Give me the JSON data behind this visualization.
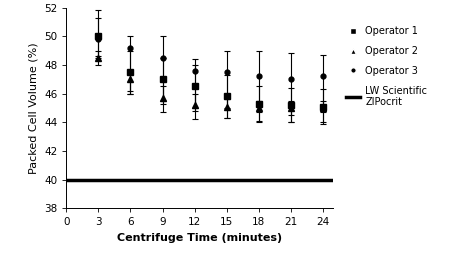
{
  "x": [
    3,
    6,
    9,
    12,
    15,
    18,
    21,
    24
  ],
  "op1_y": [
    50.0,
    47.5,
    47.0,
    46.5,
    45.8,
    45.3,
    45.2,
    45.1
  ],
  "op1_yerr_low": [
    1.5,
    1.5,
    1.5,
    1.5,
    1.5,
    1.2,
    1.2,
    1.2
  ],
  "op1_yerr_high": [
    1.8,
    1.5,
    1.5,
    1.5,
    1.5,
    1.2,
    1.2,
    1.2
  ],
  "op2_y": [
    48.5,
    47.0,
    45.7,
    45.2,
    45.1,
    45.0,
    45.0,
    45.0
  ],
  "op2_yerr_low": [
    0.5,
    1.0,
    1.0,
    1.0,
    0.8,
    1.0,
    1.0,
    1.0
  ],
  "op2_yerr_high": [
    0.5,
    0.5,
    0.8,
    0.8,
    0.5,
    0.5,
    0.5,
    0.5
  ],
  "op3_y": [
    49.8,
    49.2,
    48.5,
    47.6,
    47.5,
    47.2,
    47.0,
    47.2
  ],
  "op3_yerr_low": [
    1.2,
    3.0,
    3.2,
    2.8,
    2.5,
    2.5,
    2.5,
    2.5
  ],
  "op3_yerr_high": [
    1.5,
    0.8,
    1.5,
    0.8,
    1.5,
    1.8,
    1.8,
    1.5
  ],
  "lw_y": 40.0,
  "xlim": [
    0,
    25
  ],
  "ylim": [
    38,
    52
  ],
  "yticks": [
    38,
    40,
    42,
    44,
    46,
    48,
    50,
    52
  ],
  "xticks": [
    0,
    3,
    6,
    9,
    12,
    15,
    18,
    21,
    24
  ],
  "xlabel": "Centrifuge Time (minutes)",
  "ylabel": "Packed Cell Volume (%)",
  "legend_labels": [
    "Operator 1",
    "Operator 2",
    "Operator 3",
    "LW Scientific\nZIPocrit"
  ],
  "color": "#000000",
  "figwidth": 4.74,
  "figheight": 2.54,
  "dpi": 100
}
